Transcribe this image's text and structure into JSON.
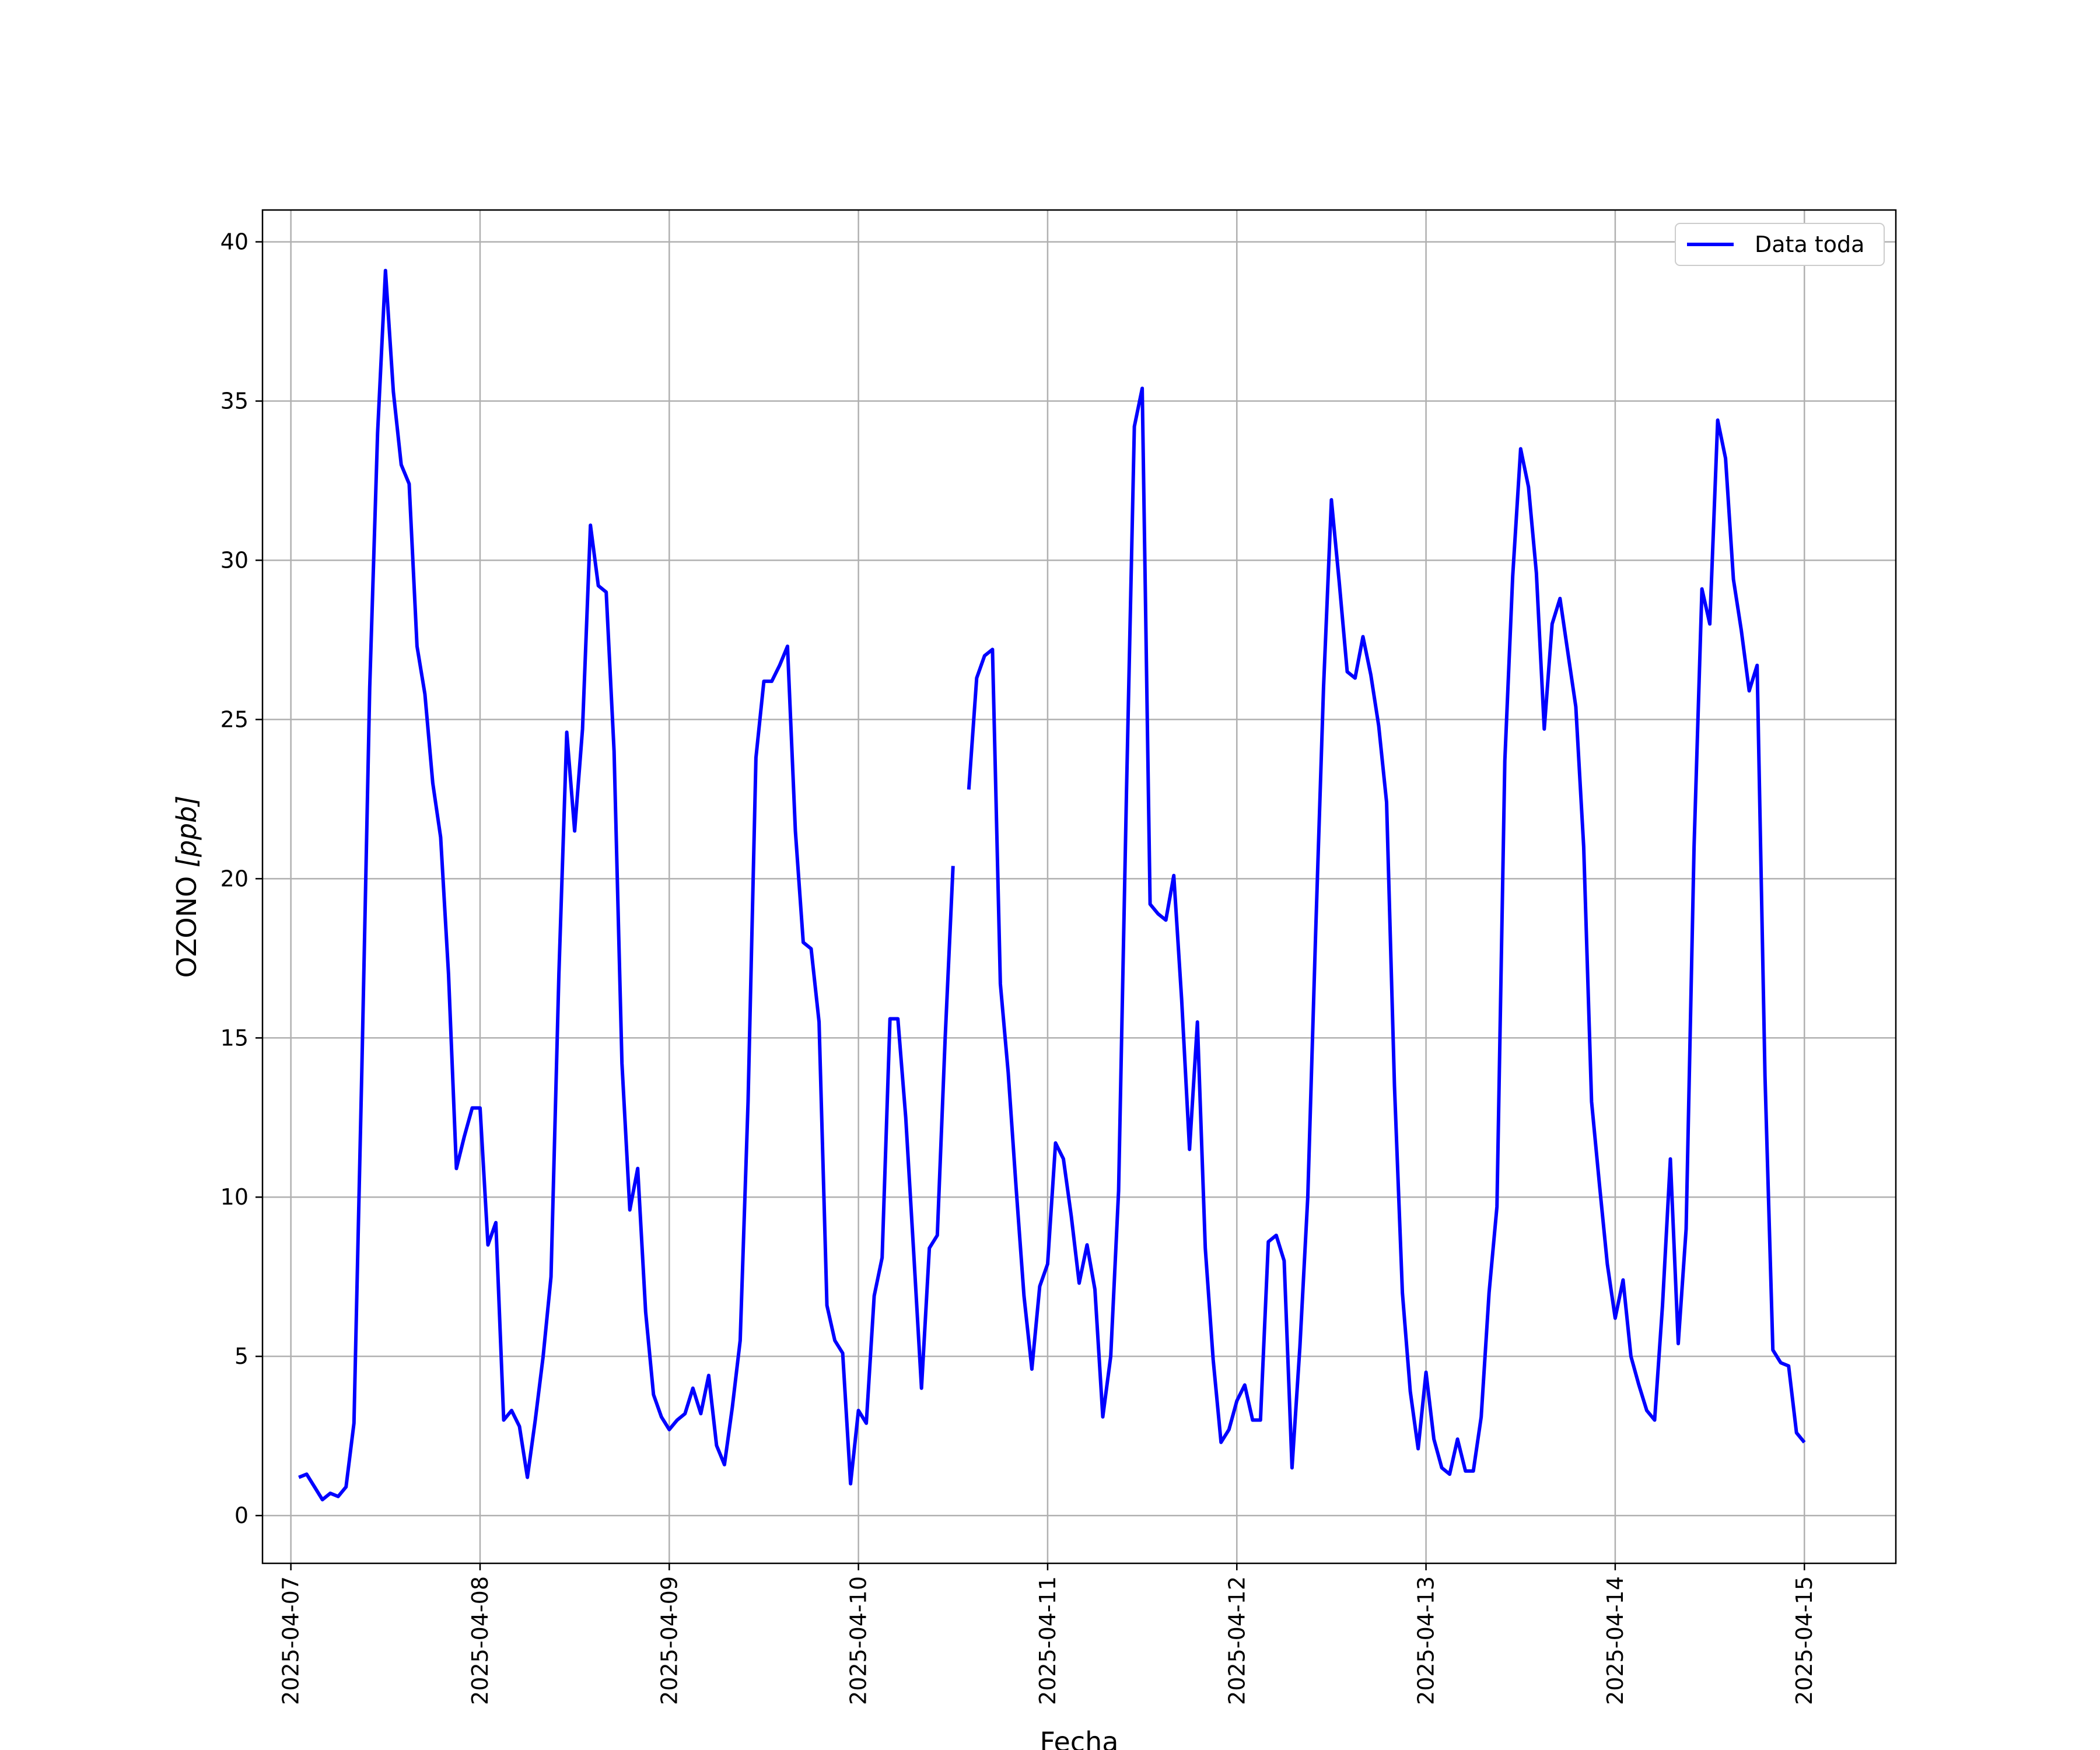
{
  "chart_data": {
    "type": "line",
    "xlabel": "Fecha",
    "ylabel": "OZONO [ppb]",
    "ylabel_parts": {
      "main": "OZONO ",
      "unit": "[ppb]"
    },
    "xlim": [
      "2025-04-06T20:24",
      "2025-04-15T11:36"
    ],
    "ylim": [
      -1.5,
      41
    ],
    "x_ticks": [
      "2025-04-07",
      "2025-04-08",
      "2025-04-09",
      "2025-04-10",
      "2025-04-11",
      "2025-04-12",
      "2025-04-13",
      "2025-04-14",
      "2025-04-15"
    ],
    "y_ticks": [
      0,
      5,
      10,
      15,
      20,
      25,
      30,
      35,
      40
    ],
    "y_tick_labels": [
      "0",
      "5",
      "10",
      "15",
      "20",
      "25",
      "30",
      "35",
      "40"
    ],
    "grid": true,
    "legend_position": "top-right",
    "series": [
      {
        "name": "Data toda",
        "color": "#0000ff",
        "x_start": "2025-04-07T01:00",
        "interval_hours": 1,
        "values": [
          1.2,
          1.3,
          0.9,
          0.5,
          0.7,
          0.6,
          0.9,
          2.9,
          14.0,
          26.0,
          34.0,
          39.1,
          35.3,
          33.0,
          32.4,
          27.3,
          25.8,
          23.0,
          21.3,
          17.0,
          10.9,
          11.9,
          12.8,
          12.8,
          8.5,
          9.2,
          3.0,
          3.3,
          2.8,
          1.2,
          3.0,
          5.0,
          7.5,
          17.0,
          24.6,
          21.5,
          24.7,
          31.1,
          29.2,
          29.0,
          24.0,
          14.2,
          9.6,
          10.9,
          6.4,
          3.8,
          3.1,
          2.7,
          3.0,
          3.2,
          4.0,
          3.2,
          4.4,
          2.2,
          1.6,
          3.4,
          5.5,
          13.0,
          23.8,
          26.2,
          26.2,
          26.7,
          27.3,
          21.5,
          18.0,
          17.8,
          15.5,
          6.6,
          5.5,
          5.1,
          1.0,
          3.3,
          2.9,
          6.9,
          8.1,
          15.6,
          15.6,
          12.5,
          8.3,
          4.0,
          8.4,
          8.8,
          15.0,
          20.4,
          null,
          22.8,
          26.3,
          27.0,
          27.2,
          16.7,
          13.9,
          10.3,
          6.9,
          4.6,
          7.2,
          7.9,
          11.7,
          11.2,
          9.4,
          7.3,
          8.5,
          7.1,
          3.1,
          5.0,
          10.2,
          22.7,
          34.2,
          35.4,
          19.2,
          18.9,
          18.7,
          20.1,
          16.2,
          11.5,
          15.5,
          8.4,
          4.9,
          2.3,
          2.7,
          3.6,
          4.1,
          3.0,
          3.0,
          8.6,
          8.8,
          8.0,
          1.5,
          5.3,
          10.0,
          18.3,
          26.0,
          31.9,
          29.3,
          26.5,
          26.3,
          27.6,
          26.4,
          24.8,
          22.4,
          13.5,
          7.0,
          3.9,
          2.1,
          4.5,
          2.4,
          1.5,
          1.3,
          2.4,
          1.4,
          1.4,
          3.1,
          7.0,
          9.7,
          23.7,
          29.5,
          33.5,
          32.3,
          29.6,
          24.7,
          28.0,
          28.8,
          27.1,
          25.4,
          21.0,
          13.0,
          10.4,
          7.9,
          6.2,
          7.4,
          5.0,
          4.1,
          3.3,
          3.0,
          6.6,
          11.2,
          5.4,
          9.0,
          21.0,
          29.1,
          28.0,
          34.4,
          33.2,
          29.4,
          27.8,
          25.9,
          26.7,
          13.8,
          5.2,
          4.8,
          4.7,
          2.6,
          2.3
        ]
      }
    ]
  }
}
